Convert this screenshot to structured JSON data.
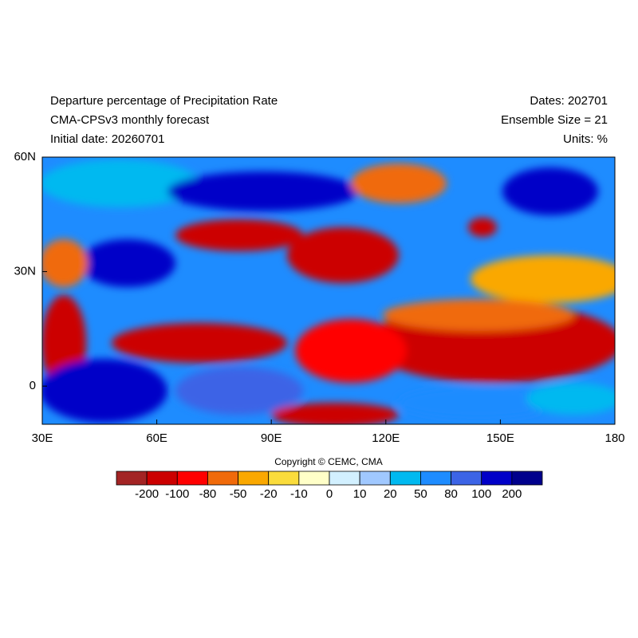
{
  "map": {
    "title_left": [
      "Departure percentage of Precipitation Rate",
      "CMA-CPSv3 monthly forecast",
      "Initial date: 20260701"
    ],
    "title_right": [
      "Dates: 202701",
      "Ensemble Size = 21",
      "Units: %"
    ],
    "lonlim": [
      30,
      180
    ],
    "latlim": [
      -10,
      60
    ],
    "lon_ticks": [
      {
        "value": 30,
        "label": "30E"
      },
      {
        "value": 60,
        "label": "60E"
      },
      {
        "value": 90,
        "label": "90E"
      },
      {
        "value": 120,
        "label": "120E"
      },
      {
        "value": 150,
        "label": "150E"
      },
      {
        "value": 180,
        "label": "180"
      }
    ],
    "lat_ticks": [
      {
        "value": 60,
        "label": "60N"
      },
      {
        "value": 30,
        "label": "30N"
      },
      0
    ],
    "copyright": "Copyright © CEMC, CMA",
    "levels": [
      -200,
      -100,
      -80,
      -50,
      -20,
      -10,
      0,
      10,
      20,
      50,
      80,
      100,
      200
    ],
    "colors": [
      "#a32424",
      "#cc0000",
      "#ff0000",
      "#f06a0a",
      "#faa800",
      "#fadc3c",
      "#ffffc8",
      "#d2f0ff",
      "#a0c8ff",
      "#00b9f0",
      "#1e8cff",
      "#3c64e6",
      "#0000c8",
      "#00008c"
    ]
  }
}
